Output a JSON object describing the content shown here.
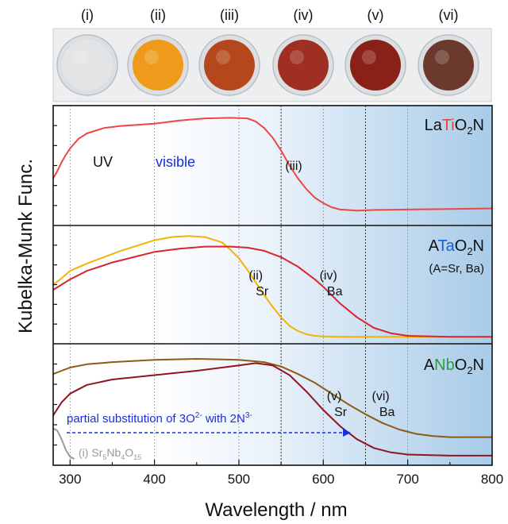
{
  "chart_data": {
    "type": "line",
    "y_label": "Kubelka-Munk Func.",
    "x_label": "Wavelength / nm",
    "x_ticks": [
      300,
      400,
      500,
      600,
      700,
      800
    ],
    "x_range": [
      280,
      800
    ],
    "grid_x": [
      300,
      400,
      500,
      600,
      700
    ],
    "grid_x_dense": [
      550,
      650
    ],
    "photo_labels": [
      "(i)",
      "(ii)",
      "(iii)",
      "(iv)",
      "(v)",
      "(vi)"
    ],
    "photo_colors": [
      "#e2e4e6",
      "#f09a1c",
      "#b4481c",
      "#9f2f22",
      "#8a2118",
      "#6b3a2c"
    ],
    "region_labels": {
      "uv": "UV",
      "visible": "visible"
    },
    "arrow_label": {
      "text": "partial substitution of 3O",
      "sup1": "2-",
      "mid": " with 2N",
      "sup2": "3-"
    },
    "panels": [
      {
        "title": {
          "a": "La",
          "b": "Ti",
          "c": "O",
          "sub": "2",
          "d": "N"
        },
        "title_element_color": "#e8452f",
        "extra_label": "",
        "annotations": [
          {
            "label": "(iii)",
            "sub": "",
            "x": 565
          }
        ],
        "series": [
          {
            "color": "#f04545",
            "x": [
              280,
              285,
              290,
              295,
              300,
              310,
              320,
              340,
              360,
              380,
              400,
              430,
              460,
              490,
              510,
              520,
              530,
              540,
              550,
              560,
              570,
              580,
              590,
              600,
              610,
              620,
              640,
              660,
              700,
              750,
              800
            ],
            "y": [
              0.38,
              0.45,
              0.53,
              0.6,
              0.66,
              0.75,
              0.8,
              0.85,
              0.87,
              0.88,
              0.89,
              0.92,
              0.94,
              0.945,
              0.94,
              0.91,
              0.85,
              0.76,
              0.64,
              0.5,
              0.38,
              0.28,
              0.2,
              0.15,
              0.11,
              0.09,
              0.08,
              0.085,
              0.09,
              0.095,
              0.1
            ]
          }
        ]
      },
      {
        "title": {
          "a": "A",
          "b": "Ta",
          "c": "O",
          "sub": "2",
          "d": "N"
        },
        "title_element_color": "#1a5fd6",
        "extra_label": "(A=Sr, Ba)",
        "annotations": [
          {
            "label": "(ii)",
            "sub": "Sr",
            "x": 520
          },
          {
            "label": "(iv)",
            "sub": "Ba",
            "x": 606
          }
        ],
        "series": [
          {
            "name": "Sr",
            "color": "#f2b400",
            "x": [
              280,
              290,
              300,
              320,
              340,
              360,
              380,
              400,
              420,
              440,
              460,
              480,
              490,
              500,
              510,
              520,
              530,
              540,
              550,
              560,
              570,
              580,
              590,
              600,
              620,
              700,
              800
            ],
            "y": [
              0.5,
              0.56,
              0.63,
              0.7,
              0.76,
              0.82,
              0.87,
              0.92,
              0.95,
              0.96,
              0.95,
              0.9,
              0.83,
              0.75,
              0.64,
              0.52,
              0.4,
              0.29,
              0.19,
              0.11,
              0.06,
              0.03,
              0.015,
              0.01,
              0.005,
              0.005,
              0.005
            ]
          },
          {
            "name": "Ba",
            "color": "#d8262c",
            "x": [
              280,
              290,
              300,
              320,
              350,
              380,
              400,
              430,
              460,
              490,
              510,
              530,
              550,
              570,
              590,
              600,
              610,
              620,
              640,
              660,
              680,
              700,
              750,
              800
            ],
            "y": [
              0.45,
              0.5,
              0.55,
              0.63,
              0.71,
              0.77,
              0.81,
              0.84,
              0.86,
              0.86,
              0.85,
              0.82,
              0.76,
              0.67,
              0.55,
              0.48,
              0.4,
              0.32,
              0.19,
              0.09,
              0.04,
              0.015,
              0.005,
              0.005
            ]
          }
        ]
      },
      {
        "title": {
          "a": "A",
          "b": "Nb",
          "c": "O",
          "sub": "2",
          "d": "N"
        },
        "title_element_color": "#2a9d3a",
        "extra_label": "",
        "annotations": [
          {
            "label": "(v)",
            "sub": "Sr",
            "x": 613
          },
          {
            "label": "(vi)",
            "sub": "Ba",
            "x": 668
          }
        ],
        "series": [
          {
            "name": "Ba",
            "color": "#8c5b14",
            "x": [
              280,
              290,
              300,
              320,
              350,
              400,
              450,
              500,
              530,
              550,
              570,
              590,
              610,
              630,
              650,
              670,
              690,
              710,
              730,
              750,
              800
            ],
            "y": [
              0.78,
              0.81,
              0.84,
              0.87,
              0.89,
              0.91,
              0.92,
              0.91,
              0.89,
              0.85,
              0.78,
              0.7,
              0.6,
              0.5,
              0.41,
              0.33,
              0.27,
              0.23,
              0.21,
              0.2,
              0.2
            ]
          },
          {
            "name": "Sr",
            "color": "#8e1620",
            "x": [
              280,
              290,
              300,
              320,
              350,
              400,
              450,
              500,
              520,
              540,
              560,
              580,
              600,
              620,
              640,
              660,
              680,
              700,
              750,
              800
            ],
            "y": [
              0.4,
              0.52,
              0.6,
              0.68,
              0.73,
              0.77,
              0.81,
              0.86,
              0.88,
              0.86,
              0.77,
              0.62,
              0.45,
              0.3,
              0.18,
              0.1,
              0.06,
              0.04,
              0.03,
              0.03
            ]
          },
          {
            "name": "(i) Sr5Nb4O15",
            "color": "#9a9a9a",
            "x": [
              280,
              285,
              290,
              295,
              300,
              305
            ],
            "y": [
              0.28,
              0.26,
              0.18,
              0.08,
              0.02,
              0.0
            ]
          }
        ]
      }
    ],
    "ref_label": {
      "a": "(i) Sr",
      "s1": "5",
      "b": "Nb",
      "s2": "4",
      "c": "O",
      "s3": "15"
    }
  }
}
